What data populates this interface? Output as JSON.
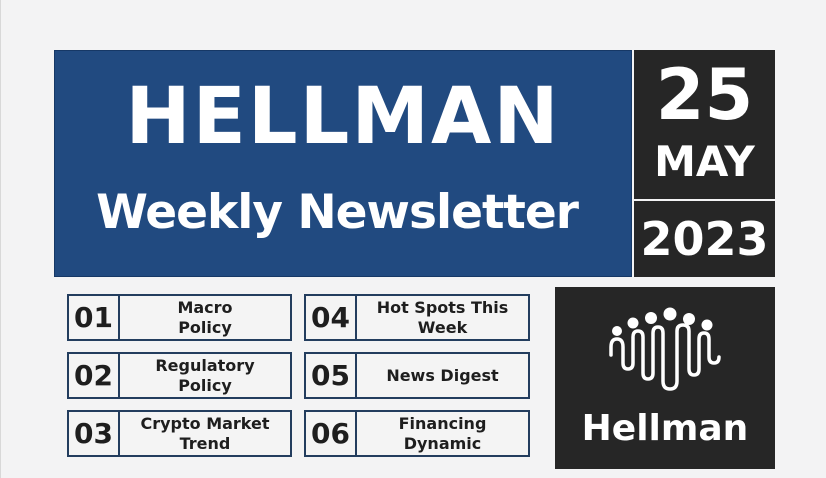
{
  "banner": {
    "title": "HELLMAN",
    "subtitle": "Weekly Newsletter"
  },
  "date": {
    "day": "25",
    "month": "MAY",
    "year": "2023"
  },
  "items": [
    {
      "num": "01",
      "label": "Macro Policy"
    },
    {
      "num": "02",
      "label": "Regulatory Policy"
    },
    {
      "num": "03",
      "label": "Crypto Market Trend"
    },
    {
      "num": "04",
      "label": "Hot Spots This Week"
    },
    {
      "num": "05",
      "label": "News Digest"
    },
    {
      "num": "06",
      "label": "Financing Dynamic"
    }
  ],
  "logo": {
    "icon": "people-wave-logo-icon",
    "name": "Hellman"
  },
  "colors": {
    "banner_blue": "#214a80",
    "dark_box": "#262626",
    "item_border": "#233d5e"
  }
}
